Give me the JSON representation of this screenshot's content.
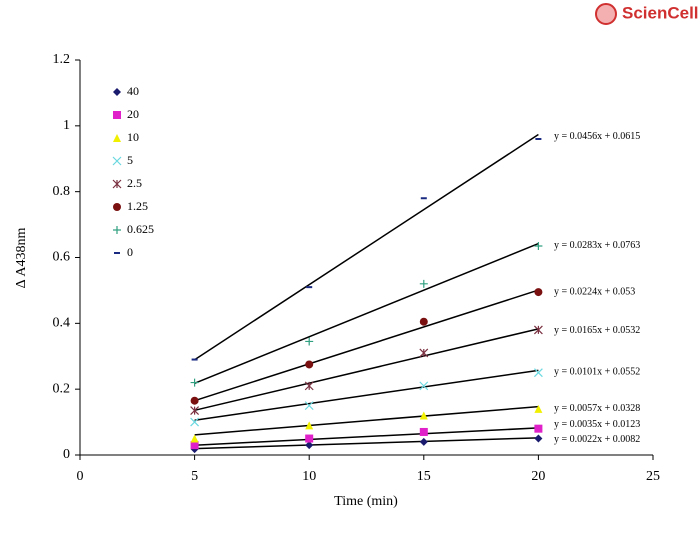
{
  "logo": "ScienCell",
  "chart_data": {
    "type": "scatter",
    "xlabel": "Time (min)",
    "ylabel": "Δ A438nm",
    "xlim": [
      0,
      25
    ],
    "xticks": [
      0,
      5,
      10,
      15,
      20,
      25
    ],
    "ylim": [
      0,
      1.2
    ],
    "yticks": [
      0,
      0.2,
      0.4,
      0.6,
      0.8,
      1,
      1.2
    ],
    "grid": false,
    "legend": "upper left",
    "x": [
      5,
      10,
      15,
      20
    ],
    "series": [
      {
        "name": "40",
        "color": "#1a1a6e",
        "marker": "diamond",
        "values": [
          0.018,
          0.03,
          0.04,
          0.05
        ],
        "trendline": {
          "slope": 0.0022,
          "intercept": 0.0082,
          "label": "y = 0.0022x + 0.0082"
        }
      },
      {
        "name": "20",
        "color": "#e020c8",
        "marker": "square",
        "values": [
          0.03,
          0.05,
          0.07,
          0.08
        ],
        "trendline": {
          "slope": 0.0035,
          "intercept": 0.0123,
          "label": "y = 0.0035x + 0.0123"
        }
      },
      {
        "name": "10",
        "color": "#f0f000",
        "marker": "triangle",
        "values": [
          0.05,
          0.09,
          0.12,
          0.14
        ],
        "trendline": {
          "slope": 0.0057,
          "intercept": 0.0328,
          "label": "y = 0.0057x + 0.0328"
        }
      },
      {
        "name": "5",
        "color": "#6ad8e0",
        "marker": "x",
        "values": [
          0.1,
          0.15,
          0.21,
          0.25
        ],
        "trendline": {
          "slope": 0.0101,
          "intercept": 0.0552,
          "label": "y = 0.0101x + 0.0552"
        }
      },
      {
        "name": "2.5",
        "color": "#7a3040",
        "marker": "star",
        "values": [
          0.135,
          0.21,
          0.31,
          0.38
        ],
        "trendline": {
          "slope": 0.0165,
          "intercept": 0.0532,
          "label": "y = 0.0165x + 0.0532"
        }
      },
      {
        "name": "1.25",
        "color": "#7a1010",
        "marker": "circle",
        "values": [
          0.165,
          0.275,
          0.405,
          0.495
        ],
        "trendline": {
          "slope": 0.0224,
          "intercept": 0.053,
          "label": "y = 0.0224x + 0.053"
        }
      },
      {
        "name": "0.625",
        "color": "#30a080",
        "marker": "plus",
        "values": [
          0.22,
          0.345,
          0.52,
          0.635
        ],
        "trendline": {
          "slope": 0.0283,
          "intercept": 0.0763,
          "label": "y = 0.0283x + 0.0763"
        }
      },
      {
        "name": "0",
        "color": "#1a2a80",
        "marker": "dash",
        "values": [
          0.29,
          0.51,
          0.78,
          0.96
        ],
        "trendline": {
          "slope": 0.0456,
          "intercept": 0.0615,
          "label": "y = 0.0456x + 0.0615"
        }
      }
    ]
  }
}
